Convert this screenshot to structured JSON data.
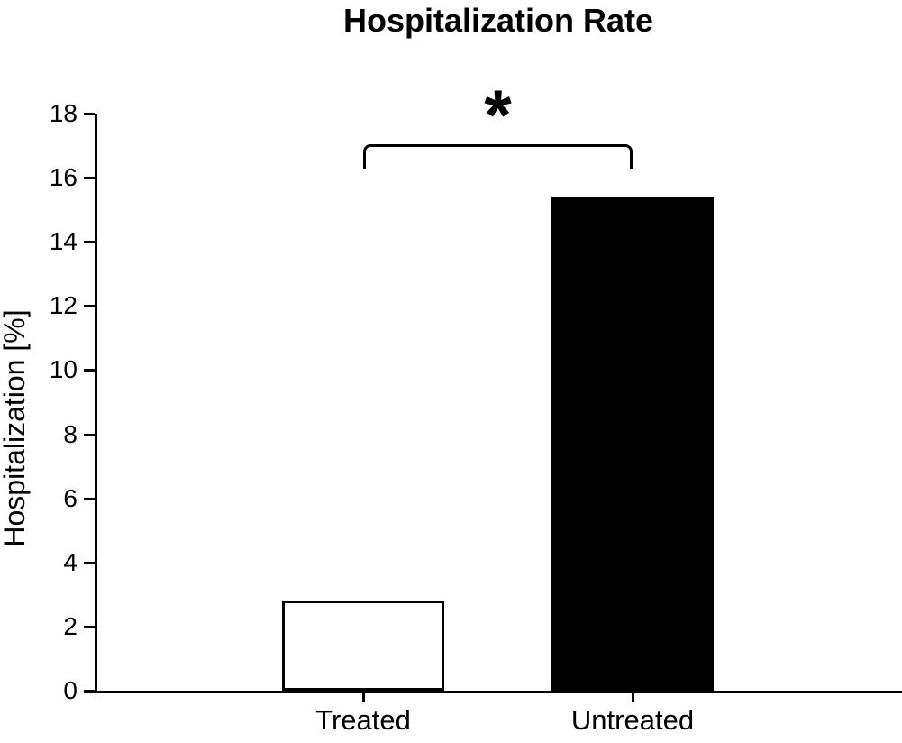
{
  "chart_data": {
    "type": "bar",
    "title": "Hospitalization Rate",
    "categories": [
      "Treated",
      "Untreated"
    ],
    "values": [
      2.8,
      15.4
    ],
    "series": [
      {
        "name": "Hospitalization Rate",
        "values": [
          2.8,
          15.4
        ]
      }
    ],
    "bar_fill_colors": [
      "#ffffff",
      "#000000"
    ],
    "bar_border_color": "#000000",
    "axis_color": "#000000",
    "background_color": "#ffffff",
    "xlabel": "",
    "ylabel": "Hospitalization [%]",
    "ylim": [
      0,
      18
    ],
    "yticks": [
      0,
      2,
      4,
      6,
      8,
      10,
      12,
      14,
      16,
      18
    ],
    "grid": false,
    "legend_position": "none",
    "annotation": {
      "text": "*",
      "meaning": "significance-marker",
      "between": [
        "Treated",
        "Untreated"
      ]
    }
  }
}
